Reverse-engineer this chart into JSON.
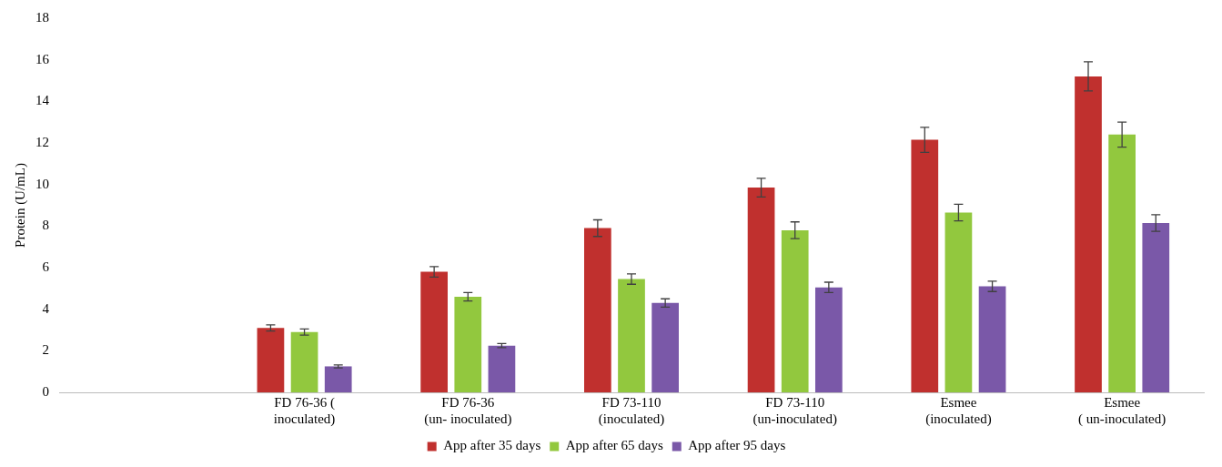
{
  "chart_data": {
    "type": "bar",
    "ylabel": "Protein (U/mL)",
    "categories": [
      null,
      "FD 76-36 (\ninoculated)",
      "FD 76-36\n(un- inoculated)",
      "FD 73-110\n(inoculated)",
      "FD 73-110\n(un-inoculated)",
      "Esmee\n(inoculated)",
      "Esmee\n( un-inoculated)"
    ],
    "series": [
      {
        "name": "App after 35 days",
        "color": "#c0302e",
        "values": [
          null,
          3.1,
          5.8,
          7.9,
          9.85,
          12.15,
          15.2
        ],
        "errors": [
          null,
          0.15,
          0.25,
          0.4,
          0.45,
          0.6,
          0.7
        ]
      },
      {
        "name": "App after 65 days",
        "color": "#92c83e",
        "values": [
          null,
          2.9,
          4.6,
          5.45,
          7.8,
          8.65,
          12.4
        ],
        "errors": [
          null,
          0.15,
          0.2,
          0.25,
          0.4,
          0.4,
          0.6
        ]
      },
      {
        "name": "App after 95 days",
        "color": "#7a58a8",
        "values": [
          null,
          1.25,
          2.25,
          4.3,
          5.05,
          5.1,
          8.15
        ],
        "errors": [
          null,
          0.07,
          0.1,
          0.2,
          0.25,
          0.25,
          0.4
        ]
      }
    ],
    "ylim": [
      0,
      18
    ],
    "yticks": [
      0,
      2,
      4,
      6,
      8,
      10,
      12,
      14,
      16,
      18
    ],
    "grid": false,
    "legend": "bottom"
  }
}
